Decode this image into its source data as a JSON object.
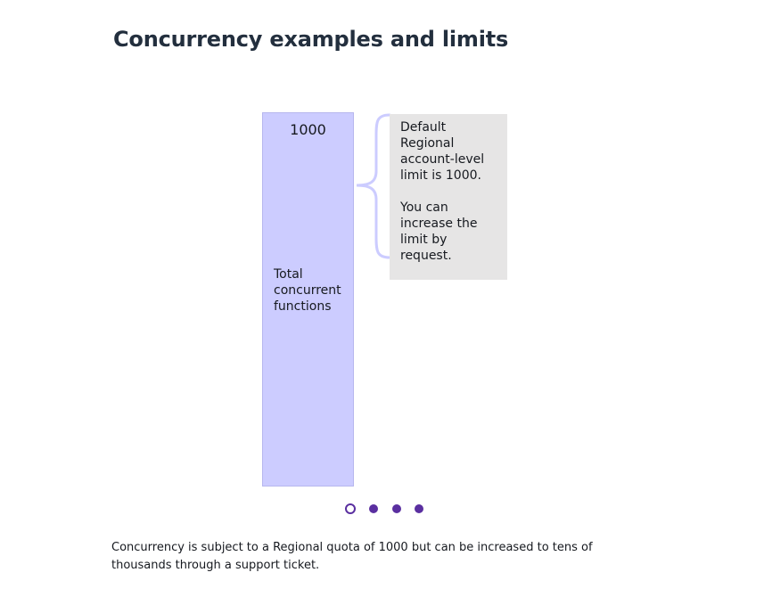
{
  "page": {
    "title": "Concurrency examples and limits"
  },
  "diagram": {
    "bar": {
      "value": "1000",
      "label": "Total\nconcurrent\nfunctions",
      "fill_color": "#ccccff"
    },
    "callout": {
      "line_1": "Default\nRegional\naccount-level\nlimit is 1000.",
      "line_2": "You can\nincrease the\nlimit by\nrequest.",
      "background_color": "#e6e5e5"
    },
    "brace_color": "#ccccff"
  },
  "carousel": {
    "slide_count": 4,
    "active_index": 0,
    "dots": [
      {
        "name": "carousel-dot-1",
        "state": "active"
      },
      {
        "name": "carousel-dot-2",
        "state": "inactive"
      },
      {
        "name": "carousel-dot-3",
        "state": "inactive"
      },
      {
        "name": "carousel-dot-4",
        "state": "inactive"
      }
    ],
    "dot_color": "#5a2fa0"
  },
  "caption": {
    "text": "Concurrency is subject to a Regional quota of 1000 but can be increased to tens of thousands through a support ticket."
  }
}
